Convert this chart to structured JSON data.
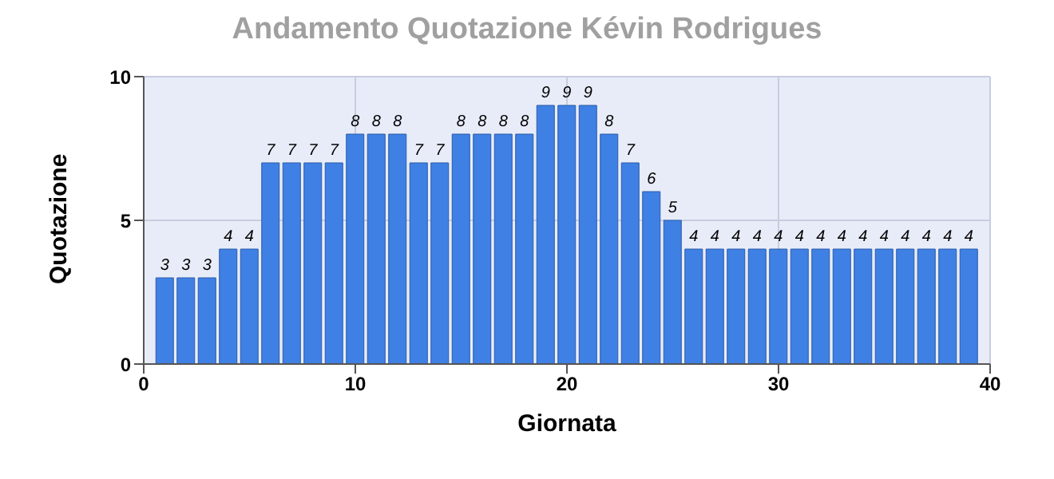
{
  "chart_data": {
    "type": "bar",
    "title": "Andamento Quotazione Kévin Rodrigues",
    "xlabel": "Giornata",
    "ylabel": "Quotazione",
    "x": [
      1,
      2,
      3,
      4,
      5,
      6,
      7,
      8,
      9,
      10,
      11,
      12,
      13,
      14,
      15,
      16,
      17,
      18,
      19,
      20,
      21,
      22,
      23,
      24,
      25,
      26,
      27,
      28,
      29,
      30,
      31,
      32,
      33,
      34,
      35,
      36,
      37,
      38,
      39
    ],
    "values": [
      3,
      3,
      3,
      4,
      4,
      7,
      7,
      7,
      7,
      8,
      8,
      8,
      7,
      7,
      8,
      8,
      8,
      8,
      9,
      9,
      9,
      8,
      7,
      6,
      5,
      4,
      4,
      4,
      4,
      4,
      4,
      4,
      4,
      4,
      4,
      4,
      4,
      4,
      4
    ],
    "color": "#3f80e4",
    "xlim": [
      0,
      40
    ],
    "xticks": [
      0,
      10,
      20,
      30,
      40
    ],
    "ylim": [
      0,
      10
    ],
    "yticks": [
      0,
      5,
      10
    ],
    "grid": true,
    "data_labels": true
  }
}
